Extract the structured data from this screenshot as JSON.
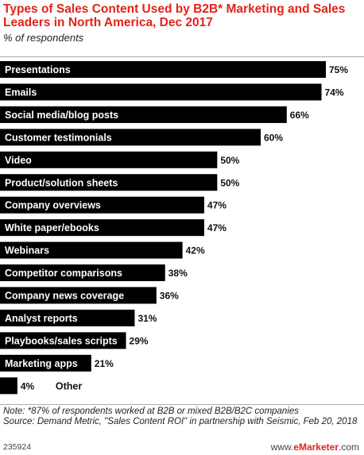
{
  "header": {
    "title": "Types of Sales Content Used by B2B* Marketing and Sales Leaders in North America, Dec 2017",
    "subtitle": "% of respondents"
  },
  "chart_data": {
    "type": "bar",
    "orientation": "horizontal",
    "categories": [
      "Presentations",
      "Emails",
      "Social media/blog posts",
      "Customer testimonials",
      "Video",
      "Product/solution sheets",
      "Company overviews",
      "White paper/ebooks",
      "Webinars",
      "Competitor comparisons",
      "Company news coverage",
      "Analyst reports",
      "Playbooks/sales scripts",
      "Marketing apps",
      "Other"
    ],
    "values": [
      75,
      74,
      66,
      60,
      50,
      50,
      47,
      47,
      42,
      38,
      36,
      31,
      29,
      21,
      4
    ],
    "value_labels": [
      "75%",
      "74%",
      "66%",
      "60%",
      "50%",
      "50%",
      "47%",
      "47%",
      "42%",
      "38%",
      "36%",
      "31%",
      "29%",
      "21%",
      "4%"
    ],
    "xlim": [
      0,
      75
    ],
    "bar_color": "#000000",
    "grid": false
  },
  "footer": {
    "note": "Note: *87% of respondents worked at B2B or mixed B2B/B2C companies",
    "source": "Source: Demand Metric, \"Sales Content ROI\" in partnership with Seismic, Feb 20, 2018",
    "id": "235924",
    "brand_prefix": "www.",
    "brand_name": "eMarketer",
    "brand_suffix": ".com"
  },
  "colors": {
    "title": "#e2231a",
    "bar": "#000000",
    "brand": "#e2231a"
  }
}
